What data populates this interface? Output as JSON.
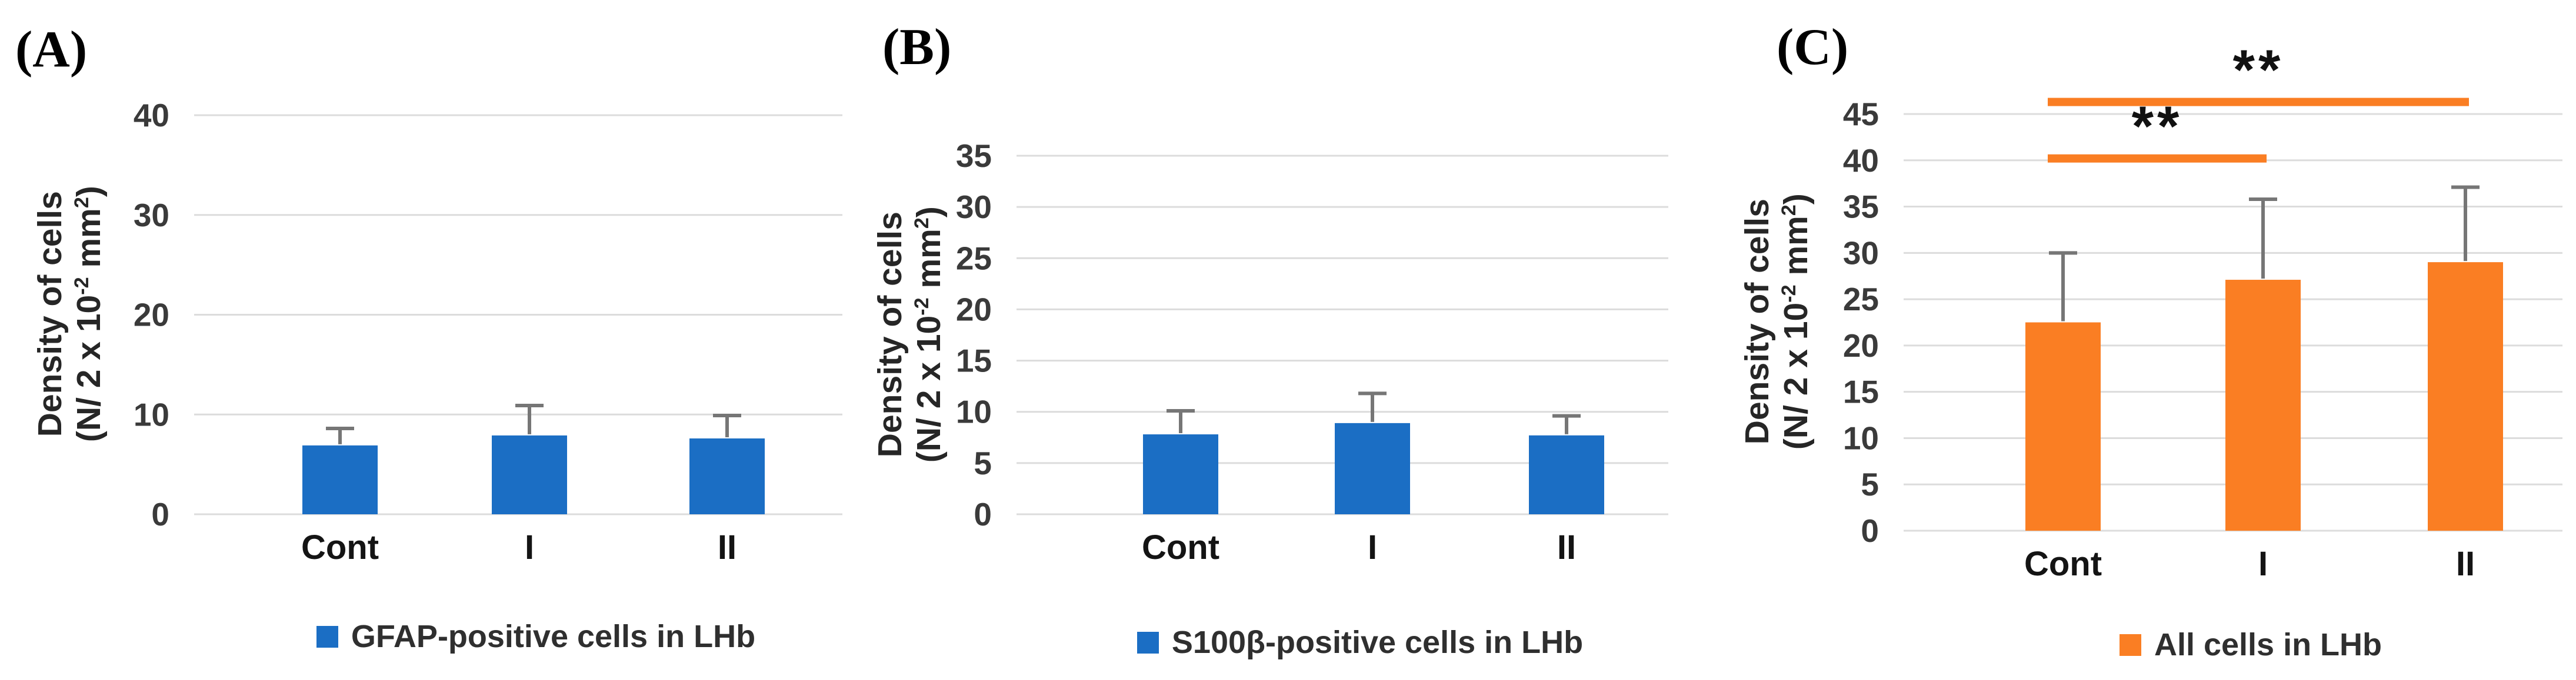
{
  "figure_caption_visible": "",
  "ylabel_parts": {
    "line1": "Density of cells",
    "line2_p1": "(N/ 2 x 10",
    "line2_sup1": "-2",
    "line2_p2": " mm",
    "line2_sup2": "2",
    "line2_p3": ")"
  },
  "colors": {
    "blue_bar": "#1b6ec4",
    "orange_bar": "#fa7e23",
    "gridline": "#dcdcdc",
    "error_bar": "#767676",
    "tick_text": "#3a3a3a",
    "category_text": "#141414",
    "star_text": "#111111"
  },
  "chart_data": [
    {
      "type": "bar",
      "panel_label": "(A)",
      "title": "",
      "xlabel": "",
      "ylabel": "Density of cells (N/ 2 x 10^-2 mm^2)",
      "categories": [
        "Cont",
        "I",
        "II"
      ],
      "values": [
        6.9,
        7.9,
        7.6
      ],
      "errors_plus": [
        1.7,
        3.0,
        2.3
      ],
      "bar_color": "#1b6ec4",
      "ylim": [
        0,
        40
      ],
      "yticks": [
        0,
        10,
        20,
        30,
        40
      ],
      "grid": true,
      "legend_label": "GFAP-positive cells in LHb",
      "legend_position": "bottom",
      "significance": []
    },
    {
      "type": "bar",
      "panel_label": "(B)",
      "title": "",
      "xlabel": "",
      "ylabel": "Density of cells (N/ 2 x 10^-2 mm^2)",
      "categories": [
        "Cont",
        "I",
        "II"
      ],
      "values": [
        7.8,
        8.9,
        7.7
      ],
      "errors_plus": [
        2.3,
        2.9,
        1.9
      ],
      "bar_color": "#1b6ec4",
      "ylim": [
        0,
        35
      ],
      "yticks": [
        0,
        5,
        10,
        15,
        20,
        25,
        30,
        35
      ],
      "grid": true,
      "legend_label": "S100β-positive cells in LHb",
      "legend_position": "bottom",
      "significance": []
    },
    {
      "type": "bar",
      "panel_label": "(C)",
      "title": "",
      "xlabel": "",
      "ylabel": "Density of cells (N/ 2 x 10^-2 mm^2)",
      "categories": [
        "Cont",
        "I",
        "II"
      ],
      "values": [
        22.5,
        27.1,
        29.0
      ],
      "errors_plus": [
        7.5,
        8.7,
        8.1
      ],
      "bar_color": "#fa7e23",
      "ylim": [
        0,
        45
      ],
      "yticks": [
        0,
        5,
        10,
        15,
        20,
        25,
        30,
        35,
        40,
        45
      ],
      "grid": true,
      "legend_label": "All cells in LHb",
      "legend_position": "bottom",
      "significance": [
        {
          "from": "Cont",
          "to": "I",
          "label": "**",
          "y": 40.2
        },
        {
          "from": "Cont",
          "to": "II",
          "label": "**",
          "y": 46.3
        }
      ]
    }
  ]
}
